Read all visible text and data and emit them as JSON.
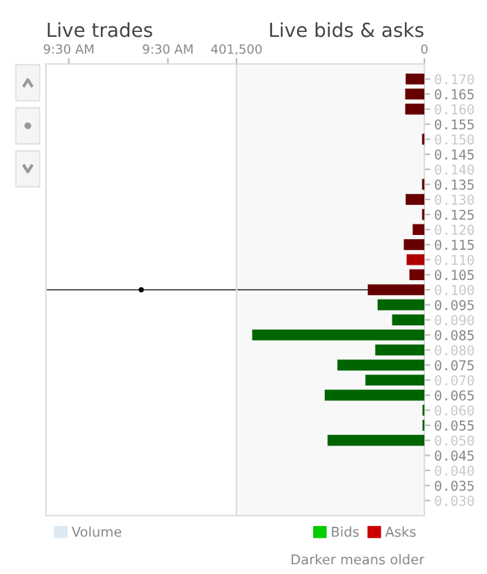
{
  "chart_data": [
    {
      "type": "scatter",
      "title": "Live trades",
      "xlim": [
        9.5,
        9.51
      ],
      "xticks": [
        {
          "value": 9.5012,
          "label": "9:30 AM"
        },
        {
          "value": 9.5064,
          "label": "9:30 AM"
        }
      ],
      "ylim": [
        0.025,
        0.175
      ],
      "tick_labels": "x",
      "series": [
        {
          "type": "scatter",
          "color": "#000000",
          "x": [
            9.505
          ],
          "values": [
            0.1
          ]
        },
        {
          "type": "bar",
          "name": "Volume",
          "color": "#dbe9f3"
        }
      ],
      "ref_lines": [
        {
          "axis": "y",
          "value": 0.1,
          "color": "#555555"
        }
      ],
      "legend": "bottom left"
    },
    {
      "type": "bar",
      "orientation": "horizontal",
      "title": "Live bids & asks",
      "xlim": [
        401500,
        0
      ],
      "xticks": [
        {
          "value": 401500,
          "label": "401,500"
        },
        0
      ],
      "ylim": [
        0.025,
        0.175
      ],
      "yticks": [
        {
          "value": 0.03,
          "label": "0.030"
        },
        {
          "value": 0.035,
          "label": "0.035"
        },
        {
          "value": 0.04,
          "label": "0.040"
        },
        {
          "value": 0.045,
          "label": "0.045"
        },
        {
          "value": 0.05,
          "label": "0.050"
        },
        {
          "value": 0.055,
          "label": "0.055"
        },
        {
          "value": 0.06,
          "label": "0.060"
        },
        {
          "value": 0.065,
          "label": "0.065"
        },
        {
          "value": 0.07,
          "label": "0.070"
        },
        {
          "value": 0.075,
          "label": "0.075"
        },
        {
          "value": 0.08,
          "label": "0.080"
        },
        {
          "value": 0.085,
          "label": "0.085"
        },
        {
          "value": 0.09,
          "label": "0.090"
        },
        {
          "value": 0.095,
          "label": "0.095"
        },
        {
          "value": 0.1,
          "label": "0.100"
        },
        {
          "value": 0.105,
          "label": "0.105"
        },
        {
          "value": 0.11,
          "label": "0.110"
        },
        {
          "value": 0.115,
          "label": "0.115"
        },
        {
          "value": 0.12,
          "label": "0.120"
        },
        {
          "value": 0.125,
          "label": "0.125"
        },
        {
          "value": 0.13,
          "label": "0.130"
        },
        {
          "value": 0.135,
          "label": "0.135"
        },
        {
          "value": 0.14,
          "label": "0.140"
        },
        {
          "value": 0.145,
          "label": "0.145"
        },
        {
          "value": 0.15,
          "label": "0.150"
        },
        {
          "value": 0.155,
          "label": "0.155"
        },
        {
          "value": 0.16,
          "label": "0.160"
        },
        {
          "value": 0.165,
          "label": "0.165"
        },
        {
          "value": 0.17,
          "label": "0.170"
        }
      ],
      "series": [
        {
          "name": "Asks",
          "color": "#cc0000",
          "x": [
            0.17,
            0.165,
            0.16,
            0.15,
            0.135,
            0.13,
            0.125,
            0.12,
            0.115,
            0.11,
            0.105,
            0.1
          ],
          "values": [
            40000,
            41000,
            41000,
            5000,
            5000,
            40000,
            5000,
            25000,
            44000,
            38000,
            32000,
            121000
          ],
          "colors": [
            "#660000",
            "#660000",
            "#660000",
            "#660000",
            "#660000",
            "#660000",
            "#660000",
            "#6e0000",
            "#660000",
            "#b00000",
            "#6e0000",
            "#660000"
          ]
        },
        {
          "name": "Bids",
          "color": "#00cc00",
          "x": [
            0.095,
            0.09,
            0.085,
            0.08,
            0.075,
            0.07,
            0.065,
            0.06,
            0.055,
            0.05
          ],
          "values": [
            100000,
            69000,
            368000,
            105000,
            186000,
            126000,
            213000,
            4000,
            4000,
            207000
          ],
          "colors": [
            "#006400",
            "#006400",
            "#006400",
            "#006400",
            "#006400",
            "#006400",
            "#006400",
            "#006400",
            "#006400",
            "#006400"
          ]
        }
      ],
      "ref_lines": [
        {
          "axis": "y",
          "value": 0.1,
          "color": "#555555"
        }
      ],
      "legend": "bottom right",
      "annotations": [
        "Darker means older"
      ]
    }
  ]
}
